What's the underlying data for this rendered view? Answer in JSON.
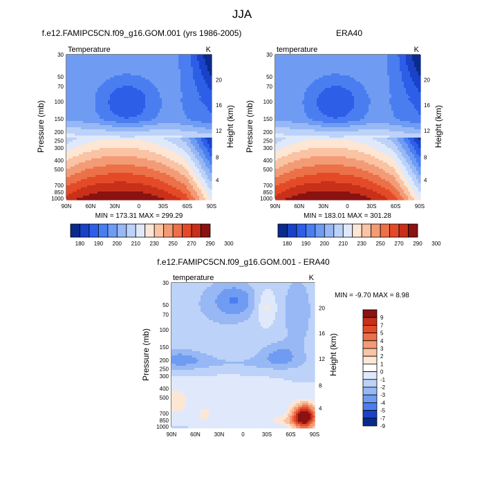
{
  "page_title": "JJA",
  "chart_data": [
    {
      "type": "heatmap",
      "title": "f.e12.FAMIPC5CN.f09_g16.GOM.001 (yrs 1986-2005)",
      "variable_label": "Temperature",
      "units": "K",
      "xlabel": "",
      "ylabel": "Pressure (mb)",
      "y2label": "Height (km)",
      "x_ticks": [
        "90N",
        "60N",
        "30N",
        "0",
        "30S",
        "60S",
        "90S"
      ],
      "y_ticks": [
        "30",
        "50",
        "70",
        "100",
        "150",
        "200",
        "250",
        "300",
        "400",
        "500",
        "700",
        "850",
        "1000"
      ],
      "y2_ticks": [
        "20",
        "16",
        "12",
        "8",
        "4"
      ],
      "stats": "MIN = 173.31   MAX = 299.29",
      "colorbar_labels": [
        "180",
        "190",
        "200",
        "210",
        "230",
        "250",
        "270",
        "290",
        "300"
      ],
      "colorbar_colors": [
        "#0a2a8c",
        "#1942c8",
        "#2c5ee8",
        "#4a7ef0",
        "#6f9cf2",
        "#97b8f5",
        "#bcd2f8",
        "#dfe9fb",
        "#fde6d4",
        "#f9c3a4",
        "#f39b75",
        "#ec7048",
        "#e44a28",
        "#c8301a",
        "#8a1210"
      ]
    },
    {
      "type": "heatmap",
      "title": "ERA40",
      "variable_label": "temperature",
      "units": "K",
      "xlabel": "",
      "ylabel": "Pressure (mb)",
      "y2label": "Height (km)",
      "x_ticks": [
        "90N",
        "60N",
        "30N",
        "0",
        "30S",
        "60S",
        "90S"
      ],
      "y_ticks": [
        "30",
        "50",
        "70",
        "100",
        "150",
        "200",
        "250",
        "300",
        "400",
        "500",
        "700",
        "850",
        "1000"
      ],
      "y2_ticks": [
        "20",
        "16",
        "12",
        "8",
        "4"
      ],
      "stats": "MIN = 183.01   MAX = 301.28",
      "colorbar_labels": [
        "180",
        "190",
        "200",
        "210",
        "230",
        "250",
        "270",
        "290",
        "300"
      ],
      "colorbar_colors": [
        "#0a2a8c",
        "#1942c8",
        "#2c5ee8",
        "#4a7ef0",
        "#6f9cf2",
        "#97b8f5",
        "#bcd2f8",
        "#dfe9fb",
        "#fde6d4",
        "#f9c3a4",
        "#f39b75",
        "#ec7048",
        "#e44a28",
        "#c8301a",
        "#8a1210"
      ]
    },
    {
      "type": "heatmap",
      "title": "f.e12.FAMIPC5CN.f09_g16.GOM.001 - ERA40",
      "variable_label": "temperature",
      "units": "K",
      "xlabel": "",
      "ylabel": "Pressure (mb)",
      "y2label": "Height (km)",
      "x_ticks": [
        "90N",
        "60N",
        "30N",
        "0",
        "30S",
        "60S",
        "90S"
      ],
      "y_ticks": [
        "30",
        "50",
        "70",
        "100",
        "150",
        "200",
        "250",
        "300",
        "400",
        "500",
        "700",
        "850",
        "1000"
      ],
      "y2_ticks": [
        "20",
        "16",
        "12",
        "8",
        "4"
      ],
      "stats": "MIN =  -9.70   MAX =   8.98",
      "colorbar_labels": [
        "9",
        "7",
        "5",
        "4",
        "3",
        "2",
        "1",
        "0",
        "-1",
        "-2",
        "-3",
        "-4",
        "-5",
        "-7",
        "-9"
      ],
      "colorbar_colors": [
        "#8a1210",
        "#c8301a",
        "#e44a28",
        "#ec7048",
        "#f39b75",
        "#f9c3a4",
        "#fde6d4",
        "#ffffff",
        "#dfe9fb",
        "#bcd2f8",
        "#97b8f5",
        "#6f9cf2",
        "#4a7ef0",
        "#1942c8",
        "#0a2a8c"
      ]
    }
  ]
}
